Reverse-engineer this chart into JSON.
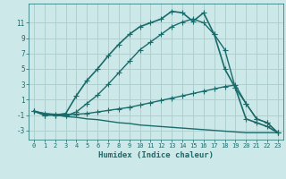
{
  "bg_color": "#cce8e8",
  "grid_color": "#b0d0d0",
  "line_color": "#1a6b6b",
  "xlabel": "Humidex (Indice chaleur)",
  "ylabel_ticks": [
    -3,
    -1,
    1,
    3,
    5,
    7,
    9,
    11
  ],
  "xlim": [
    -0.5,
    23.5
  ],
  "ylim": [
    -4.2,
    13.5
  ],
  "series": [
    {
      "x": [
        0,
        1,
        2,
        3,
        4,
        5,
        6,
        7,
        8,
        9,
        10,
        11,
        12,
        13,
        14,
        15,
        16,
        17,
        18,
        19,
        20,
        21,
        22,
        23
      ],
      "y": [
        -0.5,
        -1.0,
        -1.0,
        -0.8,
        1.5,
        3.5,
        5.0,
        6.7,
        8.2,
        9.5,
        10.5,
        11.0,
        11.5,
        12.5,
        12.3,
        11.2,
        12.3,
        9.5,
        5.0,
        2.5,
        -1.5,
        -2.0,
        -2.5,
        -3.3
      ],
      "marker": "+",
      "markersize": 4,
      "linewidth": 1.2,
      "linestyle": "-"
    },
    {
      "x": [
        0,
        1,
        2,
        3,
        4,
        5,
        6,
        7,
        8,
        9,
        10,
        11,
        12,
        13,
        14,
        15,
        16,
        17,
        18,
        19,
        20,
        21,
        22,
        23
      ],
      "y": [
        -0.5,
        -1.0,
        -1.0,
        -1.1,
        -0.6,
        0.5,
        1.6,
        3.0,
        4.5,
        6.0,
        7.5,
        8.5,
        9.5,
        10.5,
        11.1,
        11.5,
        11.0,
        9.5,
        7.5,
        2.5,
        0.5,
        -1.5,
        -2.0,
        -3.3
      ],
      "marker": "+",
      "markersize": 4,
      "linewidth": 1.0,
      "linestyle": "-"
    },
    {
      "x": [
        0,
        1,
        2,
        3,
        4,
        5,
        6,
        7,
        8,
        9,
        10,
        11,
        12,
        13,
        14,
        15,
        16,
        17,
        18,
        19,
        20,
        21,
        22,
        23
      ],
      "y": [
        -0.5,
        -0.8,
        -0.9,
        -1.0,
        -0.9,
        -0.8,
        -0.6,
        -0.4,
        -0.2,
        0.0,
        0.3,
        0.6,
        0.9,
        1.2,
        1.5,
        1.8,
        2.1,
        2.4,
        2.7,
        2.9,
        0.5,
        -1.5,
        -2.0,
        -3.3
      ],
      "marker": "+",
      "markersize": 4,
      "linewidth": 1.0,
      "linestyle": "-"
    },
    {
      "x": [
        0,
        1,
        2,
        3,
        4,
        5,
        6,
        7,
        8,
        9,
        10,
        11,
        12,
        13,
        14,
        15,
        16,
        17,
        18,
        19,
        20,
        21,
        22,
        23
      ],
      "y": [
        -0.5,
        -0.8,
        -1.0,
        -1.2,
        -1.3,
        -1.5,
        -1.6,
        -1.8,
        -2.0,
        -2.1,
        -2.3,
        -2.4,
        -2.5,
        -2.6,
        -2.7,
        -2.8,
        -2.9,
        -3.0,
        -3.1,
        -3.2,
        -3.3,
        -3.3,
        -3.3,
        -3.3
      ],
      "marker": null,
      "markersize": 0,
      "linewidth": 1.0,
      "linestyle": "-"
    }
  ]
}
